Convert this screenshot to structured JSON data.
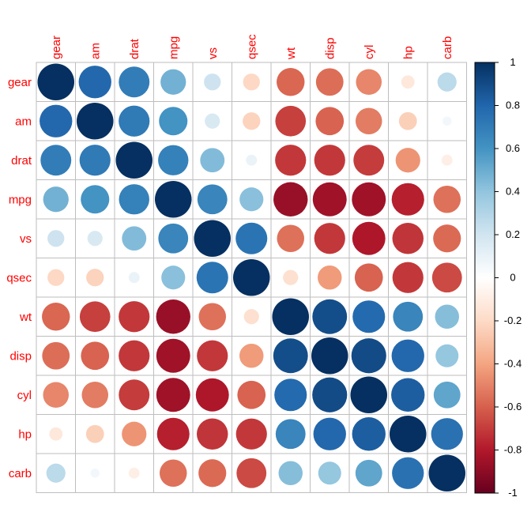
{
  "chart_data": {
    "type": "heatmap",
    "style": "correlation circles",
    "variables": [
      "gear",
      "am",
      "drat",
      "mpg",
      "vs",
      "qsec",
      "wt",
      "disp",
      "cyl",
      "hp",
      "carb"
    ],
    "matrix": [
      [
        1.0,
        0.79,
        0.7,
        0.48,
        0.21,
        -0.21,
        -0.58,
        -0.56,
        -0.49,
        -0.13,
        0.27
      ],
      [
        0.79,
        1.0,
        0.71,
        0.6,
        0.17,
        -0.23,
        -0.69,
        -0.59,
        -0.52,
        -0.24,
        0.06
      ],
      [
        0.7,
        0.71,
        1.0,
        0.68,
        0.44,
        0.09,
        -0.71,
        -0.71,
        -0.7,
        -0.45,
        -0.09
      ],
      [
        0.48,
        0.6,
        0.68,
        1.0,
        0.66,
        0.42,
        -0.87,
        -0.85,
        -0.85,
        -0.78,
        -0.55
      ],
      [
        0.21,
        0.17,
        0.44,
        0.66,
        1.0,
        0.74,
        -0.55,
        -0.71,
        -0.81,
        -0.72,
        -0.57
      ],
      [
        -0.21,
        -0.23,
        0.09,
        0.42,
        0.74,
        1.0,
        -0.17,
        -0.43,
        -0.59,
        -0.71,
        -0.66
      ],
      [
        -0.58,
        -0.69,
        -0.71,
        -0.87,
        -0.55,
        -0.17,
        1.0,
        0.89,
        0.78,
        0.66,
        0.43
      ],
      [
        -0.56,
        -0.59,
        -0.71,
        -0.85,
        -0.71,
        -0.43,
        0.89,
        1.0,
        0.9,
        0.79,
        0.39
      ],
      [
        -0.49,
        -0.52,
        -0.7,
        -0.85,
        -0.81,
        -0.59,
        0.78,
        0.9,
        1.0,
        0.83,
        0.53
      ],
      [
        -0.13,
        -0.24,
        -0.45,
        -0.78,
        -0.72,
        -0.71,
        0.66,
        0.79,
        0.83,
        1.0,
        0.75
      ],
      [
        0.27,
        0.06,
        -0.09,
        -0.55,
        -0.57,
        -0.66,
        0.43,
        0.39,
        0.53,
        0.75,
        1.0
      ]
    ],
    "color_scale": {
      "range": [
        -1,
        1
      ],
      "ticks": [
        "1",
        "0.8",
        "0.6",
        "0.4",
        "0.2",
        "0",
        "-0.2",
        "-0.4",
        "-0.6",
        "-0.8",
        "-1"
      ],
      "colors": [
        "#67001F",
        "#B2182B",
        "#D6604D",
        "#F4A582",
        "#FDDBC7",
        "#FFFFFF",
        "#D1E5F0",
        "#92C5DE",
        "#4393C3",
        "#2166AC",
        "#053061"
      ]
    },
    "label_color": "#FF0000",
    "grid_color": "#BEBEBE"
  }
}
